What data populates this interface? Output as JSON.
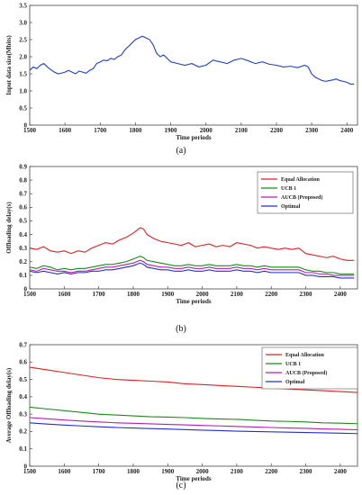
{
  "chart_data": [
    {
      "type": "line",
      "caption": "(a)",
      "xlabel": "Time periods",
      "ylabel": "Input data size(Mbits)",
      "xlim": [
        1500,
        2430
      ],
      "ylim": [
        0,
        3.5
      ],
      "xticks": [
        1500,
        1600,
        1700,
        1800,
        1900,
        2000,
        2100,
        2200,
        2300,
        2400
      ],
      "yticks": [
        0,
        0.5,
        1.0,
        1.5,
        2.0,
        2.5,
        3.0,
        3.5
      ],
      "yticklabels": [
        "0",
        "0.5",
        "1.0",
        "1.5",
        "2.0",
        "2.5",
        "3.0",
        "3.5"
      ],
      "grid": false,
      "series": [
        {
          "name": "",
          "color": "#1f3fcf",
          "x": [
            1500,
            1510,
            1520,
            1530,
            1540,
            1550,
            1560,
            1570,
            1580,
            1590,
            1600,
            1610,
            1620,
            1630,
            1640,
            1650,
            1660,
            1670,
            1680,
            1690,
            1700,
            1710,
            1720,
            1730,
            1740,
            1750,
            1760,
            1770,
            1780,
            1790,
            1800,
            1810,
            1820,
            1830,
            1840,
            1850,
            1860,
            1870,
            1880,
            1890,
            1900,
            1920,
            1940,
            1960,
            1980,
            2000,
            2020,
            2040,
            2060,
            2080,
            2100,
            2120,
            2140,
            2160,
            2180,
            2200,
            2220,
            2240,
            2260,
            2280,
            2290,
            2300,
            2310,
            2320,
            2330,
            2340,
            2350,
            2360,
            2370,
            2380,
            2390,
            2400,
            2410,
            2420
          ],
          "y": [
            1.6,
            1.7,
            1.65,
            1.75,
            1.8,
            1.7,
            1.62,
            1.55,
            1.5,
            1.52,
            1.55,
            1.6,
            1.55,
            1.5,
            1.58,
            1.55,
            1.52,
            1.6,
            1.65,
            1.8,
            1.85,
            1.9,
            1.88,
            1.95,
            1.92,
            2.0,
            2.05,
            2.2,
            2.3,
            2.4,
            2.5,
            2.55,
            2.6,
            2.55,
            2.5,
            2.35,
            2.1,
            2.0,
            2.05,
            1.95,
            1.85,
            1.8,
            1.75,
            1.8,
            1.7,
            1.75,
            1.9,
            1.85,
            1.8,
            1.9,
            1.95,
            1.88,
            1.8,
            1.85,
            1.78,
            1.75,
            1.7,
            1.72,
            1.68,
            1.75,
            1.7,
            1.5,
            1.4,
            1.35,
            1.3,
            1.28,
            1.3,
            1.32,
            1.35,
            1.3,
            1.28,
            1.25,
            1.2,
            1.2
          ]
        }
      ]
    },
    {
      "type": "line",
      "caption": "(b)",
      "xlabel": "Time periods",
      "ylabel": "Offloading delay(s)",
      "xlim": [
        1500,
        2450
      ],
      "ylim": [
        0,
        0.9
      ],
      "xticks": [
        1500,
        1600,
        1700,
        1800,
        1900,
        2000,
        2100,
        2200,
        2300,
        2400
      ],
      "yticks": [
        0,
        0.1,
        0.2,
        0.3,
        0.4,
        0.5,
        0.6,
        0.7,
        0.8,
        0.9
      ],
      "yticklabels": [
        "0",
        "0.1",
        "0.2",
        "0.3",
        "0.4",
        "0.5",
        "0.6",
        "0.7",
        "0.8",
        "0.9"
      ],
      "grid": false,
      "legend": "top-right",
      "series": [
        {
          "name": "Equal Allocation",
          "color": "#e02020",
          "x": [
            1500,
            1520,
            1540,
            1560,
            1580,
            1600,
            1620,
            1640,
            1660,
            1680,
            1700,
            1720,
            1740,
            1760,
            1780,
            1800,
            1810,
            1820,
            1830,
            1840,
            1860,
            1880,
            1900,
            1920,
            1940,
            1960,
            1980,
            2000,
            2020,
            2040,
            2060,
            2080,
            2100,
            2120,
            2140,
            2160,
            2180,
            2200,
            2220,
            2240,
            2260,
            2280,
            2300,
            2320,
            2340,
            2360,
            2380,
            2400,
            2420,
            2440
          ],
          "y": [
            0.3,
            0.29,
            0.31,
            0.28,
            0.27,
            0.28,
            0.26,
            0.28,
            0.27,
            0.3,
            0.32,
            0.34,
            0.33,
            0.36,
            0.38,
            0.41,
            0.43,
            0.45,
            0.44,
            0.4,
            0.37,
            0.35,
            0.34,
            0.33,
            0.32,
            0.34,
            0.31,
            0.32,
            0.33,
            0.31,
            0.32,
            0.31,
            0.34,
            0.33,
            0.32,
            0.3,
            0.31,
            0.3,
            0.29,
            0.3,
            0.29,
            0.3,
            0.26,
            0.25,
            0.24,
            0.23,
            0.24,
            0.22,
            0.21,
            0.21
          ]
        },
        {
          "name": "UCB 1",
          "color": "#1a8a1a",
          "x": [
            1500,
            1520,
            1540,
            1560,
            1580,
            1600,
            1620,
            1640,
            1660,
            1680,
            1700,
            1720,
            1740,
            1760,
            1780,
            1800,
            1810,
            1820,
            1830,
            1840,
            1860,
            1880,
            1900,
            1920,
            1940,
            1960,
            1980,
            2000,
            2020,
            2040,
            2060,
            2080,
            2100,
            2120,
            2140,
            2160,
            2180,
            2200,
            2220,
            2240,
            2260,
            2280,
            2300,
            2320,
            2340,
            2360,
            2380,
            2400,
            2420,
            2440
          ],
          "y": [
            0.16,
            0.15,
            0.17,
            0.16,
            0.14,
            0.15,
            0.14,
            0.15,
            0.15,
            0.16,
            0.17,
            0.18,
            0.18,
            0.19,
            0.2,
            0.22,
            0.23,
            0.24,
            0.23,
            0.21,
            0.2,
            0.19,
            0.18,
            0.17,
            0.17,
            0.18,
            0.17,
            0.17,
            0.18,
            0.17,
            0.17,
            0.17,
            0.18,
            0.17,
            0.17,
            0.16,
            0.17,
            0.16,
            0.16,
            0.16,
            0.16,
            0.16,
            0.14,
            0.13,
            0.13,
            0.12,
            0.12,
            0.11,
            0.11,
            0.11
          ]
        },
        {
          "name": "AUCB (Proposed)",
          "color": "#b020b0",
          "x": [
            1500,
            1520,
            1540,
            1560,
            1580,
            1600,
            1620,
            1640,
            1660,
            1680,
            1700,
            1720,
            1740,
            1760,
            1780,
            1800,
            1810,
            1820,
            1830,
            1840,
            1860,
            1880,
            1900,
            1920,
            1940,
            1960,
            1980,
            2000,
            2020,
            2040,
            2060,
            2080,
            2100,
            2120,
            2140,
            2160,
            2180,
            2200,
            2220,
            2240,
            2260,
            2280,
            2300,
            2320,
            2340,
            2360,
            2380,
            2400,
            2420,
            2440
          ],
          "y": [
            0.14,
            0.13,
            0.15,
            0.14,
            0.13,
            0.13,
            0.12,
            0.13,
            0.13,
            0.14,
            0.15,
            0.16,
            0.16,
            0.17,
            0.18,
            0.19,
            0.2,
            0.21,
            0.2,
            0.18,
            0.17,
            0.16,
            0.16,
            0.15,
            0.15,
            0.16,
            0.15,
            0.15,
            0.16,
            0.15,
            0.15,
            0.15,
            0.16,
            0.15,
            0.15,
            0.14,
            0.15,
            0.14,
            0.14,
            0.14,
            0.14,
            0.14,
            0.12,
            0.12,
            0.11,
            0.11,
            0.1,
            0.1,
            0.1,
            0.1
          ]
        },
        {
          "name": "Optimal",
          "color": "#2030d0",
          "x": [
            1500,
            1520,
            1540,
            1560,
            1580,
            1600,
            1620,
            1640,
            1660,
            1680,
            1700,
            1720,
            1740,
            1760,
            1780,
            1800,
            1810,
            1820,
            1830,
            1840,
            1860,
            1880,
            1900,
            1920,
            1940,
            1960,
            1980,
            2000,
            2020,
            2040,
            2060,
            2080,
            2100,
            2120,
            2140,
            2160,
            2180,
            2200,
            2220,
            2240,
            2260,
            2280,
            2300,
            2320,
            2340,
            2360,
            2380,
            2400,
            2420,
            2440
          ],
          "y": [
            0.13,
            0.12,
            0.13,
            0.12,
            0.11,
            0.12,
            0.11,
            0.12,
            0.12,
            0.13,
            0.13,
            0.14,
            0.14,
            0.15,
            0.16,
            0.17,
            0.18,
            0.19,
            0.18,
            0.16,
            0.15,
            0.14,
            0.14,
            0.13,
            0.13,
            0.14,
            0.13,
            0.13,
            0.14,
            0.13,
            0.13,
            0.13,
            0.14,
            0.13,
            0.13,
            0.12,
            0.13,
            0.12,
            0.12,
            0.12,
            0.12,
            0.12,
            0.1,
            0.1,
            0.09,
            0.09,
            0.09,
            0.08,
            0.08,
            0.08
          ]
        }
      ]
    },
    {
      "type": "line",
      "caption": "(c)",
      "xlabel": "Time periods",
      "ylabel": "Average Offloading delay(s)",
      "xlim": [
        1500,
        2450
      ],
      "ylim": [
        0,
        0.7
      ],
      "xticks": [
        1500,
        1600,
        1700,
        1800,
        1900,
        2000,
        2100,
        2200,
        2300,
        2400
      ],
      "yticks": [
        0,
        0.1,
        0.2,
        0.3,
        0.4,
        0.5,
        0.6,
        0.7
      ],
      "yticklabels": [
        "0",
        "0.1",
        "0.2",
        "0.3",
        "0.4",
        "0.5",
        "0.6",
        "0.7"
      ],
      "grid": false,
      "legend": "top-right",
      "series": [
        {
          "name": "Equal Allocation",
          "color": "#e02020",
          "x": [
            1500,
            1550,
            1600,
            1650,
            1700,
            1750,
            1800,
            1850,
            1900,
            1950,
            2000,
            2050,
            2100,
            2150,
            2200,
            2250,
            2300,
            2350,
            2400,
            2450
          ],
          "y": [
            0.57,
            0.555,
            0.54,
            0.525,
            0.51,
            0.5,
            0.495,
            0.49,
            0.485,
            0.475,
            0.47,
            0.465,
            0.46,
            0.455,
            0.45,
            0.445,
            0.44,
            0.435,
            0.43,
            0.425
          ]
        },
        {
          "name": "UCB 1",
          "color": "#1a8a1a",
          "x": [
            1500,
            1550,
            1600,
            1650,
            1700,
            1750,
            1800,
            1850,
            1900,
            1950,
            2000,
            2050,
            2100,
            2150,
            2200,
            2250,
            2300,
            2350,
            2400,
            2450
          ],
          "y": [
            0.34,
            0.33,
            0.32,
            0.31,
            0.3,
            0.295,
            0.29,
            0.285,
            0.283,
            0.28,
            0.275,
            0.272,
            0.27,
            0.265,
            0.26,
            0.258,
            0.255,
            0.25,
            0.248,
            0.245
          ]
        },
        {
          "name": "AUCB (Proposed)",
          "color": "#b020b0",
          "x": [
            1500,
            1550,
            1600,
            1650,
            1700,
            1750,
            1800,
            1850,
            1900,
            1950,
            2000,
            2050,
            2100,
            2150,
            2200,
            2250,
            2300,
            2350,
            2400,
            2450
          ],
          "y": [
            0.28,
            0.273,
            0.266,
            0.26,
            0.255,
            0.25,
            0.247,
            0.244,
            0.241,
            0.238,
            0.235,
            0.232,
            0.229,
            0.226,
            0.223,
            0.22,
            0.218,
            0.215,
            0.213,
            0.21
          ]
        },
        {
          "name": "Optimal",
          "color": "#2030d0",
          "x": [
            1500,
            1550,
            1600,
            1650,
            1700,
            1750,
            1800,
            1850,
            1900,
            1950,
            2000,
            2050,
            2100,
            2150,
            2200,
            2250,
            2300,
            2350,
            2400,
            2450
          ],
          "y": [
            0.25,
            0.243,
            0.237,
            0.232,
            0.227,
            0.223,
            0.22,
            0.217,
            0.214,
            0.211,
            0.208,
            0.205,
            0.202,
            0.2,
            0.198,
            0.196,
            0.194,
            0.192,
            0.19,
            0.188
          ]
        }
      ]
    }
  ]
}
